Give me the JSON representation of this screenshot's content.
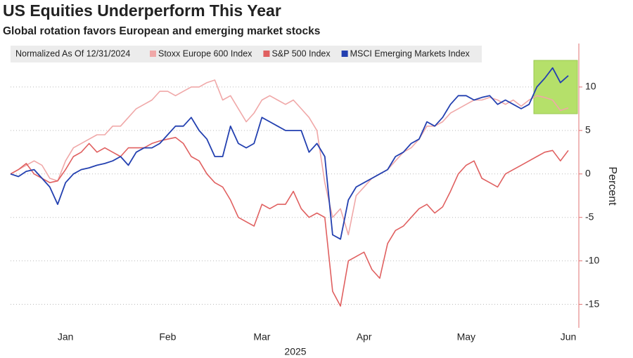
{
  "chart_data": {
    "type": "line",
    "title": "US Equities Underperform This Year",
    "subtitle": "Global rotation favors European and emerging market stocks",
    "legend_title": "Normalized As Of 12/31/2024",
    "ylabel": "Percent",
    "xlabel": "2025",
    "categories": [
      null,
      null,
      null,
      null,
      null,
      null,
      null,
      "Jan",
      null,
      null,
      null,
      null,
      null,
      null,
      null,
      null,
      null,
      null,
      null,
      null,
      "Feb",
      null,
      null,
      null,
      null,
      null,
      null,
      null,
      null,
      null,
      null,
      null,
      "Mar",
      null,
      null,
      null,
      null,
      null,
      null,
      null,
      null,
      null,
      null,
      null,
      null,
      "Apr",
      null,
      null,
      null,
      null,
      null,
      null,
      null,
      null,
      null,
      null,
      null,
      null,
      "May",
      null,
      null,
      null,
      null,
      null,
      null,
      null,
      null,
      null,
      null,
      null,
      null,
      "Jun"
    ],
    "series": [
      {
        "name": "Stoxx Europe 600 Index",
        "color": "#f0a8a8",
        "values": [
          0,
          0.5,
          1,
          1.5,
          1,
          -0.5,
          -0.8,
          1.5,
          3,
          3.5,
          4,
          4.5,
          4.5,
          5.5,
          5.5,
          6.5,
          7.5,
          8,
          8.5,
          9.5,
          9.5,
          9,
          9.5,
          10,
          10,
          10.5,
          10.8,
          8.5,
          9,
          7.5,
          6,
          7,
          8.5,
          9,
          8.5,
          8,
          8.5,
          7.5,
          6.5,
          5,
          -1,
          -5,
          -4,
          -7,
          -2.5,
          -1.5,
          -0.5,
          0,
          0.5,
          1.5,
          2.5,
          3,
          4,
          5.5,
          5.5,
          6,
          7,
          7.5,
          8,
          8.5,
          8.5,
          8.8,
          8.5,
          8,
          8.5,
          7.8,
          8.5,
          9,
          8.8,
          8.5,
          7.3,
          7.6
        ]
      },
      {
        "name": "S&P 500 Index",
        "color": "#e06060",
        "values": [
          0,
          0.5,
          1.2,
          0,
          -0.5,
          -1,
          -0.8,
          0.5,
          2,
          2.5,
          3.5,
          2.5,
          3,
          2.5,
          2,
          3,
          3,
          3,
          3.5,
          3.8,
          4,
          4.2,
          3.5,
          2,
          1.5,
          0,
          -1,
          -1.5,
          -3,
          -5,
          -5.5,
          -6,
          -3.5,
          -4,
          -3.5,
          -3.5,
          -2,
          -4,
          -5,
          -4.5,
          -5,
          -13.5,
          -15.2,
          -10,
          -9.5,
          -9,
          -11,
          -12,
          -8,
          -6.5,
          -6,
          -5,
          -4,
          -3.5,
          -4.5,
          -3.8,
          -2,
          0,
          1,
          1.5,
          -0.5,
          -1,
          -1.5,
          0,
          0.5,
          1,
          1.5,
          2,
          2.5,
          2.7,
          1.5,
          2.7
        ]
      },
      {
        "name": "MSCI Emerging Markets Index",
        "color": "#2340b0",
        "values": [
          0,
          -0.3,
          0.3,
          0.5,
          -0.5,
          -1.5,
          -3.5,
          -1,
          0,
          0.5,
          0.7,
          1,
          1.2,
          1.5,
          2,
          1,
          2.5,
          3,
          3,
          3.5,
          4.5,
          5.5,
          5.5,
          6.5,
          5,
          4,
          2,
          2,
          5.5,
          3.5,
          3,
          3.5,
          6.5,
          6,
          5.5,
          5,
          5,
          5,
          2.5,
          3.5,
          2,
          -7,
          -7.5,
          -3,
          -1.5,
          -1,
          -0.5,
          0,
          0.5,
          2,
          2.5,
          3.5,
          4,
          6,
          5.5,
          6.5,
          8,
          9,
          9,
          8.5,
          8.8,
          9,
          8,
          8.5,
          8,
          7.5,
          8,
          10,
          11,
          12.2,
          10.5,
          11.3
        ]
      }
    ],
    "ylim": [
      -17.7,
      15
    ],
    "yticks": [
      -15,
      -10,
      -5,
      0,
      5,
      10
    ],
    "grid": true,
    "y_axis_side": "right"
  }
}
